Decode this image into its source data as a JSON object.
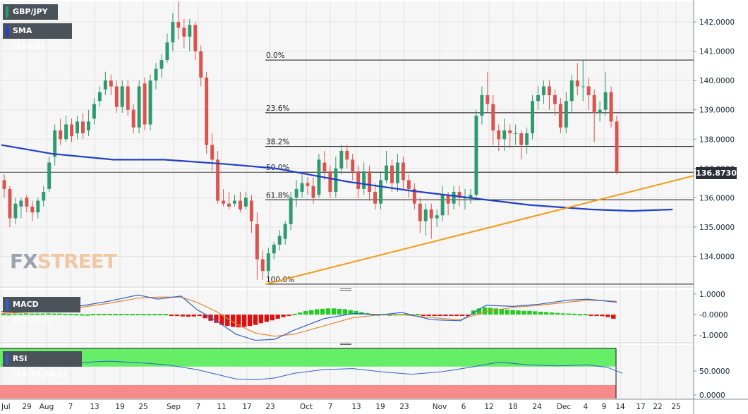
{
  "symbol_label": "GBP/JPY",
  "sma_label": "SMA (200,0)",
  "macd_label": "MACD (12,26,9)",
  "rsi_label": "RSI (14,70,30,1)",
  "watermark": {
    "part1": "FX",
    "part2": "STREET"
  },
  "current_price": "136.8730",
  "colors": {
    "up": "#2e9a6e",
    "down": "#d9534f",
    "sma": "#1f3fcc",
    "trend": "#f39c12",
    "macd_line": "#2f5fd0",
    "signal_line": "#e8862a",
    "hist_up": "#22cc22",
    "hist_down": "#dd1111",
    "rsi_over": "#66ee66",
    "rsi_under": "#f78a8a"
  },
  "x_ticks": [
    "Jul",
    "29",
    "Aug",
    "7",
    "13",
    "19",
    "25",
    "Sep",
    "7",
    "11",
    "17",
    "23",
    "Oct",
    "7",
    "13",
    "19",
    "23",
    "Nov",
    "6",
    "12",
    "18",
    "24",
    "Dec",
    "4",
    "9",
    "14",
    "17",
    "22",
    "25"
  ],
  "price_ticks": [
    "142.0000",
    "141.0000",
    "140.0000",
    "139.0000",
    "138.0000",
    "137.0000",
    "136.0000",
    "135.0000",
    "134.0000"
  ],
  "macd_ticks": [
    "1.0000",
    "-0.0000",
    "-1.0000"
  ],
  "rsi_ticks": [
    "50.0000",
    "0.0000"
  ],
  "chart_data": {
    "type": "candlestick",
    "price_range": [
      133.0,
      142.7
    ],
    "fib_levels": [
      {
        "label": "0.0%",
        "price": 140.7
      },
      {
        "label": "23.6%",
        "price": 138.9
      },
      {
        "label": "38.2%",
        "price": 137.75
      },
      {
        "label": "50.0%",
        "price": 136.87
      },
      {
        "label": "61.8%",
        "price": 135.93
      },
      {
        "label": "100.0%",
        "price": 133.05
      }
    ],
    "candles": [
      [
        136.6,
        136.3,
        136.8,
        136.0
      ],
      [
        136.3,
        135.3,
        136.4,
        135.0
      ],
      [
        135.3,
        135.8,
        136.0,
        135.1
      ],
      [
        135.7,
        135.9,
        136.0,
        135.3
      ],
      [
        136.0,
        135.7,
        136.1,
        135.5
      ],
      [
        135.7,
        135.5,
        135.9,
        135.2
      ],
      [
        135.5,
        135.9,
        136.0,
        135.3
      ],
      [
        135.9,
        136.2,
        136.4,
        135.7
      ],
      [
        136.3,
        137.2,
        137.4,
        136.2
      ],
      [
        137.4,
        138.3,
        138.5,
        137.1
      ],
      [
        138.3,
        138.0,
        138.7,
        137.8
      ],
      [
        138.0,
        138.5,
        138.8,
        137.9
      ],
      [
        138.5,
        138.1,
        138.7,
        137.9
      ],
      [
        138.2,
        138.6,
        138.8,
        138.0
      ],
      [
        138.6,
        138.2,
        138.9,
        138.0
      ],
      [
        138.3,
        138.6,
        139.0,
        138.1
      ],
      [
        138.7,
        139.2,
        139.4,
        138.5
      ],
      [
        139.3,
        139.6,
        139.8,
        139.1
      ],
      [
        139.7,
        140.0,
        140.3,
        139.5
      ],
      [
        140.0,
        139.8,
        140.2,
        139.5
      ],
      [
        139.8,
        139.1,
        140.0,
        138.9
      ],
      [
        139.1,
        139.8,
        140.0,
        138.9
      ],
      [
        139.8,
        139.0,
        140.0,
        138.8
      ],
      [
        139.0,
        138.4,
        139.2,
        138.2
      ],
      [
        138.4,
        139.8,
        140.0,
        138.2
      ],
      [
        139.9,
        138.5,
        140.1,
        138.3
      ],
      [
        138.5,
        140.0,
        140.2,
        138.3
      ],
      [
        140.0,
        140.4,
        140.6,
        139.7
      ],
      [
        140.4,
        140.7,
        140.9,
        140.1
      ],
      [
        140.7,
        141.3,
        141.6,
        140.6
      ],
      [
        141.3,
        142.0,
        142.3,
        141.0
      ],
      [
        142.0,
        141.8,
        142.7,
        141.4
      ],
      [
        141.8,
        141.5,
        142.1,
        141.1
      ],
      [
        141.5,
        141.9,
        142.1,
        141.0
      ],
      [
        141.9,
        141.0,
        142.0,
        140.7
      ],
      [
        141.0,
        140.1,
        141.2,
        139.8
      ],
      [
        140.1,
        137.8,
        140.3,
        137.5
      ],
      [
        137.8,
        137.3,
        138.2,
        136.9
      ],
      [
        137.3,
        135.9,
        137.6,
        135.8
      ],
      [
        135.9,
        135.8,
        136.3,
        135.7
      ],
      [
        135.8,
        135.7,
        136.2,
        135.6
      ],
      [
        135.8,
        135.9,
        136.1,
        135.7
      ],
      [
        135.9,
        135.6,
        136.2,
        135.5
      ],
      [
        135.7,
        136.0,
        136.2,
        135.6
      ],
      [
        135.9,
        135.2,
        136.1,
        134.8
      ],
      [
        135.1,
        133.9,
        135.5,
        133.2
      ],
      [
        133.9,
        133.5,
        134.2,
        133.2
      ],
      [
        133.5,
        134.1,
        134.3,
        133.3
      ],
      [
        134.1,
        134.4,
        134.5,
        133.9
      ],
      [
        134.4,
        134.7,
        134.9,
        134.2
      ],
      [
        134.6,
        135.1,
        135.2,
        134.4
      ],
      [
        135.1,
        136.0,
        136.2,
        134.9
      ],
      [
        136.0,
        136.3,
        136.6,
        135.7
      ],
      [
        136.2,
        136.5,
        136.8,
        136.0
      ],
      [
        136.5,
        136.4,
        136.7,
        136.1
      ],
      [
        136.4,
        136.0,
        136.7,
        135.8
      ],
      [
        136.1,
        137.3,
        137.5,
        136.0
      ],
      [
        137.2,
        136.9,
        137.6,
        136.6
      ],
      [
        136.9,
        136.2,
        137.1,
        136.0
      ],
      [
        136.2,
        137.0,
        137.4,
        136.0
      ],
      [
        137.0,
        137.6,
        137.8,
        136.8
      ],
      [
        137.6,
        137.3,
        137.8,
        137.0
      ],
      [
        137.3,
        136.9,
        137.5,
        136.6
      ],
      [
        136.9,
        136.3,
        137.1,
        136.0
      ],
      [
        136.3,
        136.9,
        137.2,
        136.1
      ],
      [
        136.9,
        136.2,
        137.1,
        135.9
      ],
      [
        136.2,
        135.8,
        136.5,
        135.6
      ],
      [
        135.8,
        136.6,
        136.9,
        135.6
      ],
      [
        136.6,
        137.1,
        137.6,
        136.5
      ],
      [
        137.1,
        136.5,
        137.3,
        136.2
      ],
      [
        136.5,
        137.2,
        137.5,
        136.2
      ],
      [
        137.2,
        136.6,
        137.4,
        136.3
      ],
      [
        136.6,
        136.3,
        136.8,
        136.0
      ],
      [
        136.3,
        135.8,
        136.5,
        135.6
      ],
      [
        135.8,
        135.2,
        136.0,
        134.8
      ],
      [
        135.2,
        135.6,
        135.8,
        134.7
      ],
      [
        135.6,
        135.3,
        135.8,
        134.6
      ],
      [
        135.3,
        135.4,
        135.6,
        135.0
      ],
      [
        135.4,
        136.1,
        136.4,
        135.2
      ],
      [
        136.1,
        135.8,
        136.2,
        135.4
      ],
      [
        135.8,
        136.2,
        136.4,
        135.6
      ],
      [
        136.2,
        136.0,
        136.4,
        135.7
      ],
      [
        136.0,
        136.0,
        136.3,
        135.6
      ],
      [
        136.0,
        136.1,
        136.3,
        135.8
      ],
      [
        136.1,
        138.8,
        139.0,
        136.0
      ],
      [
        138.8,
        139.5,
        139.8,
        138.5
      ],
      [
        139.5,
        139.2,
        140.3,
        138.9
      ],
      [
        139.2,
        138.3,
        139.5,
        137.8
      ],
      [
        138.3,
        138.0,
        138.5,
        137.6
      ],
      [
        138.0,
        138.3,
        138.7,
        137.6
      ],
      [
        138.3,
        138.2,
        138.5,
        137.7
      ],
      [
        138.2,
        138.2,
        138.5,
        137.8
      ],
      [
        138.2,
        137.8,
        138.3,
        137.3
      ],
      [
        137.8,
        138.2,
        138.4,
        137.5
      ],
      [
        138.2,
        139.3,
        139.5,
        138.0
      ],
      [
        139.3,
        139.5,
        139.8,
        139.0
      ],
      [
        139.5,
        139.8,
        140.0,
        139.2
      ],
      [
        139.8,
        139.5,
        140.0,
        139.0
      ],
      [
        139.5,
        139.2,
        139.7,
        138.8
      ],
      [
        139.2,
        138.4,
        139.4,
        138.2
      ],
      [
        138.4,
        139.3,
        139.6,
        138.2
      ],
      [
        139.3,
        140.0,
        140.2,
        138.9
      ],
      [
        140.0,
        139.8,
        140.6,
        139.5
      ],
      [
        139.8,
        139.8,
        140.7,
        139.3
      ],
      [
        139.8,
        139.5,
        140.1,
        139.0
      ],
      [
        139.5,
        138.9,
        139.7,
        137.9
      ],
      [
        138.9,
        139.0,
        139.3,
        138.6
      ],
      [
        139.0,
        139.6,
        140.3,
        138.8
      ],
      [
        139.6,
        138.6,
        139.8,
        138.4
      ],
      [
        138.6,
        136.87,
        138.8,
        136.8
      ]
    ],
    "sma": [
      [
        0,
        137.8
      ],
      [
        25,
        137.5
      ],
      [
        55,
        137.3
      ],
      [
        80,
        137.3
      ],
      [
        110,
        137.15
      ],
      [
        135,
        137.0
      ],
      [
        170,
        136.55
      ],
      [
        200,
        136.25
      ],
      [
        230,
        136.0
      ],
      [
        260,
        135.75
      ],
      [
        290,
        135.6
      ],
      [
        310,
        135.55
      ],
      [
        330,
        135.6
      ]
    ],
    "trendline": [
      [
        56,
        133.05
      ],
      [
        381,
        136.75
      ]
    ],
    "macd": {
      "range": [
        -1.3,
        1.2
      ],
      "macd_line": [
        [
          0,
          0.15
        ],
        [
          30,
          0.25
        ],
        [
          55,
          0.65
        ],
        [
          70,
          0.95
        ],
        [
          80,
          0.75
        ],
        [
          92,
          0.9
        ],
        [
          100,
          0.25
        ],
        [
          110,
          -0.3
        ],
        [
          120,
          -0.95
        ],
        [
          130,
          -1.25
        ],
        [
          140,
          -1.2
        ],
        [
          150,
          -0.75
        ],
        [
          165,
          -0.2
        ],
        [
          180,
          0.05
        ],
        [
          195,
          0.0
        ],
        [
          205,
          0.1
        ],
        [
          220,
          -0.25
        ],
        [
          235,
          -0.3
        ],
        [
          248,
          0.45
        ],
        [
          262,
          0.4
        ],
        [
          275,
          0.5
        ],
        [
          290,
          0.7
        ],
        [
          300,
          0.75
        ],
        [
          315,
          0.6
        ]
      ],
      "signal_line": [
        [
          0,
          0.05
        ],
        [
          30,
          0.2
        ],
        [
          55,
          0.55
        ],
        [
          70,
          0.8
        ],
        [
          80,
          0.85
        ],
        [
          92,
          0.85
        ],
        [
          100,
          0.6
        ],
        [
          110,
          0.15
        ],
        [
          120,
          -0.45
        ],
        [
          130,
          -0.9
        ],
        [
          140,
          -1.05
        ],
        [
          150,
          -0.95
        ],
        [
          165,
          -0.55
        ],
        [
          180,
          -0.15
        ],
        [
          195,
          0.0
        ],
        [
          205,
          0.0
        ],
        [
          220,
          -0.15
        ],
        [
          235,
          -0.25
        ],
        [
          248,
          0.15
        ],
        [
          262,
          0.35
        ],
        [
          275,
          0.45
        ],
        [
          290,
          0.6
        ],
        [
          300,
          0.7
        ],
        [
          315,
          0.65
        ]
      ],
      "histogram": [
        0.0,
        0.03,
        0.05,
        0.05,
        0.06,
        0.05,
        0.05,
        0.05,
        0.06,
        0.05,
        0.05,
        0.04,
        0.04,
        0.03,
        0.02,
        0.01,
        0.0,
        0.0,
        0.0,
        0.0,
        0.0,
        0.0,
        0.0,
        0.0,
        0.0,
        0.0,
        0.0,
        0.0,
        0.0,
        0.0,
        -0.03,
        -0.06,
        -0.09,
        -0.1,
        -0.09,
        -0.07,
        -0.18,
        -0.3,
        -0.4,
        -0.5,
        -0.55,
        -0.6,
        -0.62,
        -0.6,
        -0.55,
        -0.5,
        -0.42,
        -0.35,
        -0.28,
        -0.2,
        -0.12,
        -0.05,
        0.04,
        0.1,
        0.17,
        0.22,
        0.26,
        0.28,
        0.3,
        0.3,
        0.28,
        0.26,
        0.22,
        0.18,
        0.12,
        0.07,
        0.03,
        0.01,
        0.0,
        0.01,
        0.02,
        0.03,
        0.03,
        0.02,
        0.0,
        -0.03,
        -0.05,
        -0.06,
        -0.06,
        -0.05,
        -0.04,
        -0.03,
        -0.02,
        -0.01,
        0.2,
        0.3,
        0.35,
        0.33,
        0.3,
        0.27,
        0.24,
        0.22,
        0.2,
        0.18,
        0.18,
        0.16,
        0.14,
        0.12,
        0.1,
        0.08,
        0.06,
        0.05,
        0.04,
        0.03,
        0.0,
        -0.03,
        -0.05,
        -0.08,
        -0.12,
        -0.2
      ]
    },
    "rsi": {
      "range": [
        0,
        100
      ],
      "line": [
        [
          0,
          60
        ],
        [
          20,
          62
        ],
        [
          40,
          65
        ],
        [
          55,
          68
        ],
        [
          70,
          65
        ],
        [
          85,
          60
        ],
        [
          100,
          50
        ],
        [
          110,
          40
        ],
        [
          120,
          30
        ],
        [
          130,
          28
        ],
        [
          140,
          32
        ],
        [
          150,
          42
        ],
        [
          165,
          50
        ],
        [
          180,
          52
        ],
        [
          195,
          45
        ],
        [
          210,
          40
        ],
        [
          225,
          45
        ],
        [
          240,
          55
        ],
        [
          255,
          66
        ],
        [
          270,
          60
        ],
        [
          285,
          58
        ],
        [
          300,
          60
        ],
        [
          310,
          55
        ],
        [
          318,
          42
        ]
      ]
    }
  }
}
